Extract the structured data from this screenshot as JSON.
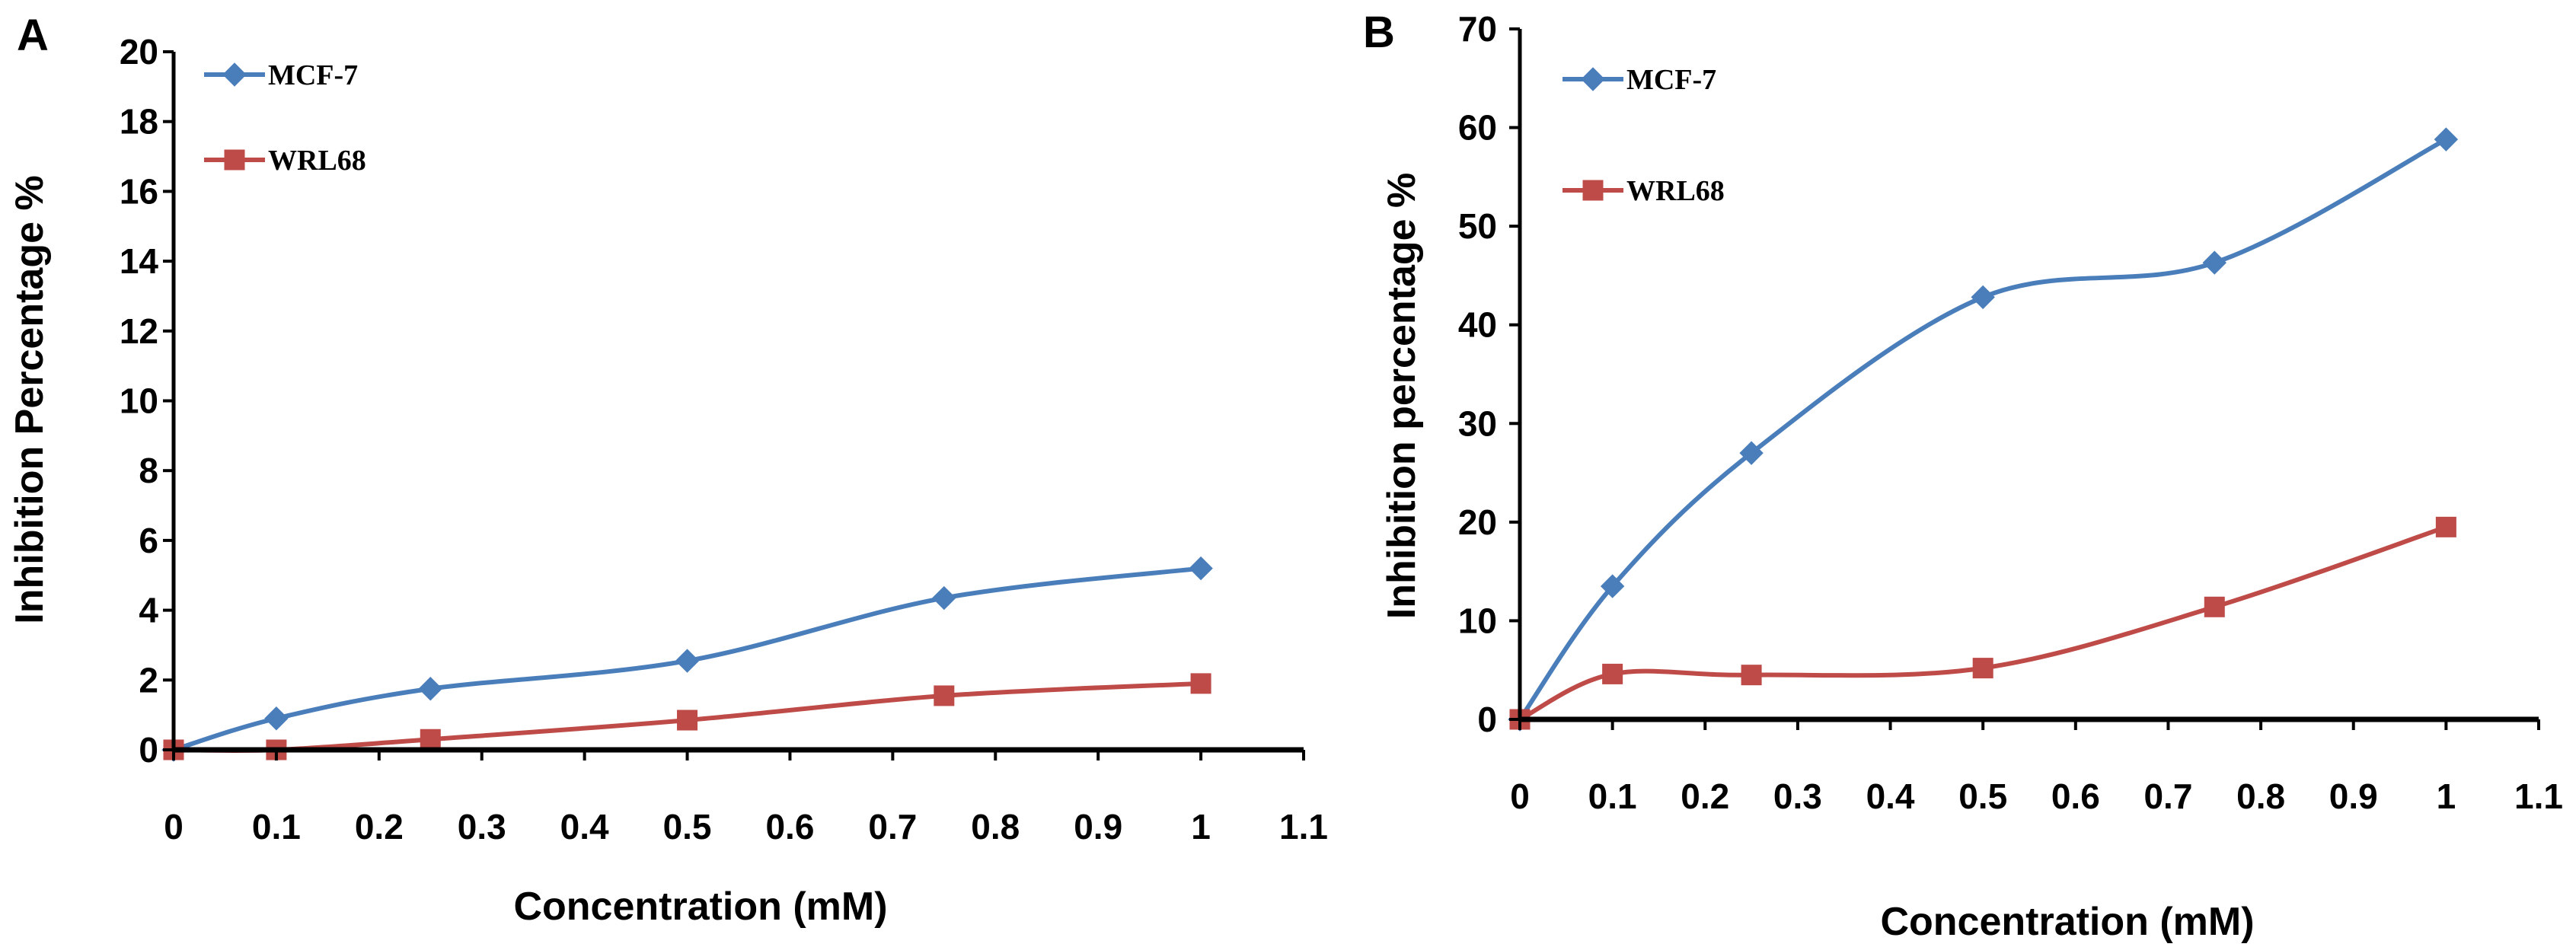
{
  "figure": {
    "colors": {
      "mcf7": "#4a7ebb",
      "wrl68": "#be4b48",
      "axis": "#000000"
    }
  },
  "chart_data": [
    {
      "type": "line",
      "panel": "A",
      "xlabel": "Concentration (mM)",
      "ylabel": "Inhibition Percentage %",
      "xlim": [
        0,
        1.1
      ],
      "ylim": [
        0,
        20
      ],
      "xticks": [
        0,
        0.1,
        0.2,
        0.3,
        0.4,
        0.5,
        0.6,
        0.7,
        0.8,
        0.9,
        1,
        1.1
      ],
      "xtick_labels": [
        "0",
        "0.1",
        "0.2",
        "0.3",
        "0.4",
        "0.5",
        "0.6",
        "0.7",
        "0.8",
        "0.9",
        "1",
        "1.1"
      ],
      "yticks": [
        0,
        2,
        4,
        6,
        8,
        10,
        12,
        14,
        16,
        18,
        20
      ],
      "ytick_labels": [
        "0",
        "2",
        "4",
        "6",
        "8",
        "10",
        "12",
        "14",
        "16",
        "18",
        "20"
      ],
      "legend_position": "top-left",
      "series": [
        {
          "name": "MCF-7",
          "marker": "diamond",
          "color": "#4a7ebb",
          "x": [
            0,
            0.1,
            0.25,
            0.5,
            0.75,
            1
          ],
          "y": [
            0,
            0.9,
            1.75,
            2.55,
            4.35,
            5.2
          ]
        },
        {
          "name": "WRL68",
          "marker": "square",
          "color": "#be4b48",
          "x": [
            0,
            0.1,
            0.25,
            0.5,
            0.75,
            1
          ],
          "y": [
            0,
            0,
            0.3,
            0.85,
            1.55,
            1.9
          ]
        }
      ]
    },
    {
      "type": "line",
      "panel": "B",
      "xlabel": "Concentration (mM)",
      "ylabel": "Inhibition percentage %",
      "xlim": [
        0,
        1.1
      ],
      "ylim": [
        0,
        70
      ],
      "xticks": [
        0,
        0.1,
        0.2,
        0.3,
        0.4,
        0.5,
        0.6,
        0.7,
        0.8,
        0.9,
        1,
        1.1
      ],
      "xtick_labels": [
        "0",
        "0.1",
        "0.2",
        "0.3",
        "0.4",
        "0.5",
        "0.6",
        "0.7",
        "0.8",
        "0.9",
        "1",
        "1.1"
      ],
      "yticks": [
        0,
        10,
        20,
        30,
        40,
        50,
        60,
        70
      ],
      "ytick_labels": [
        "0",
        "10",
        "20",
        "30",
        "40",
        "50",
        "60",
        "70"
      ],
      "legend_position": "top-left",
      "series": [
        {
          "name": "MCF-7",
          "marker": "diamond",
          "color": "#4a7ebb",
          "x": [
            0,
            0.1,
            0.25,
            0.5,
            0.75,
            1
          ],
          "y": [
            0,
            13.5,
            27,
            42.8,
            46.3,
            58.8
          ]
        },
        {
          "name": "WRL68",
          "marker": "square",
          "color": "#be4b48",
          "x": [
            0,
            0.1,
            0.25,
            0.5,
            0.75,
            1
          ],
          "y": [
            0,
            4.6,
            4.5,
            5.2,
            11.4,
            19.5
          ]
        }
      ]
    }
  ]
}
